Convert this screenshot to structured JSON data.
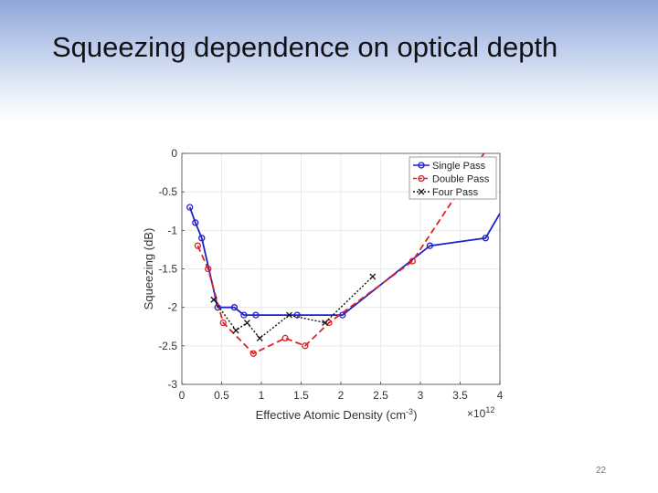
{
  "slide": {
    "title": "Squeezing dependence on optical depth",
    "page_number": "22"
  },
  "chart_data": {
    "type": "line",
    "title": "",
    "xlabel": "Effective Atomic Density (cm",
    "xlabel_sup": "-3",
    "xlabel_end": ")",
    "x_multiplier": "×10",
    "x_multiplier_sup": "12",
    "ylabel": "Squeezing (dB)",
    "xlim": [
      0,
      4
    ],
    "ylim": [
      -3,
      0
    ],
    "x_ticks": [
      0,
      0.5,
      1,
      1.5,
      2,
      2.5,
      3,
      3.5,
      4
    ],
    "x_tick_labels": [
      "0",
      "0.5",
      "1",
      "1.5",
      "2",
      "2.5",
      "3",
      "3.5",
      "4"
    ],
    "y_ticks": [
      0,
      -0.5,
      -1,
      -1.5,
      -2,
      -2.5,
      -3
    ],
    "y_tick_labels": [
      "0",
      "-0.5",
      "-1",
      "-1.5",
      "-2",
      "-2.5",
      "-3"
    ],
    "grid": true,
    "legend_position": "top-right",
    "series": [
      {
        "name": "Single Pass",
        "color": "#1f1fcc",
        "line_style": "solid",
        "marker": "circle",
        "x": [
          0.1,
          0.17,
          0.25,
          0.45,
          0.66,
          0.78,
          0.93,
          1.45,
          2.02,
          3.12,
          3.82,
          4.0
        ],
        "y": [
          -0.7,
          -0.9,
          -1.1,
          -2.0,
          -2.0,
          -2.1,
          -2.1,
          -2.1,
          -2.1,
          -1.2,
          -1.1,
          -0.78
        ]
      },
      {
        "name": "Double Pass",
        "color": "#dd2222",
        "line_style": "dashed",
        "marker": "circle",
        "x": [
          0.2,
          0.33,
          0.52,
          0.9,
          1.3,
          1.55,
          1.85,
          2.9,
          3.8
        ],
        "y": [
          -1.2,
          -1.5,
          -2.2,
          -2.6,
          -2.4,
          -2.5,
          -2.2,
          -1.4,
          0.0
        ]
      },
      {
        "name": "Four Pass",
        "color": "#111111",
        "line_style": "dotted",
        "marker": "x",
        "x": [
          0.4,
          0.68,
          0.82,
          0.98,
          1.35,
          1.8,
          2.4
        ],
        "y": [
          -1.9,
          -2.3,
          -2.2,
          -2.4,
          -2.1,
          -2.2,
          -1.6
        ]
      }
    ]
  }
}
